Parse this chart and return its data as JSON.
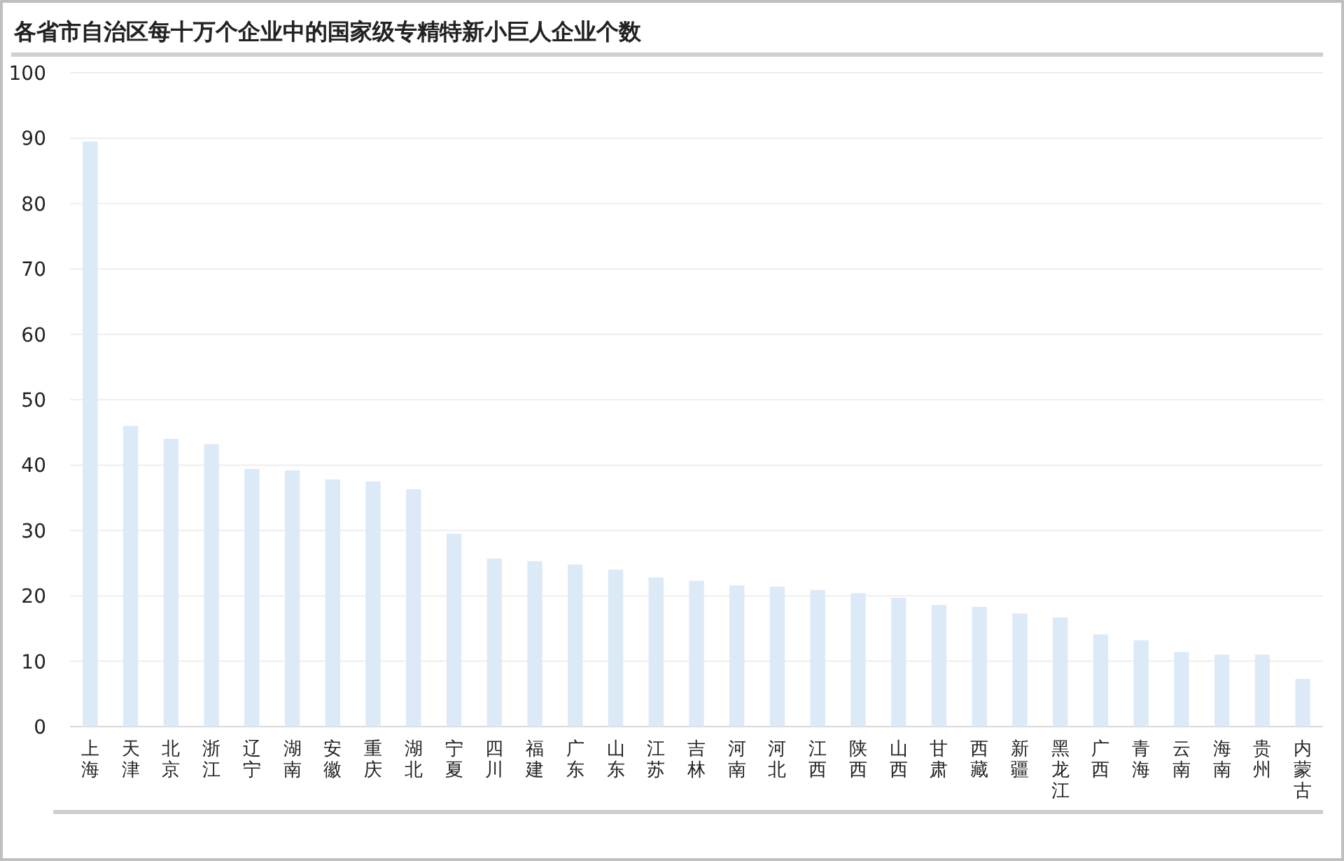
{
  "chart_data": {
    "type": "bar",
    "title": "各省市自治区每十万个企业中的国家级专精特新小巨人企业个数",
    "categories": [
      "上海",
      "天津",
      "北京",
      "浙江",
      "辽宁",
      "湖南",
      "安徽",
      "重庆",
      "湖北",
      "宁夏",
      "四川",
      "福建",
      "广东",
      "山东",
      "江苏",
      "吉林",
      "河南",
      "河北",
      "江西",
      "陕西",
      "山西",
      "甘肃",
      "西藏",
      "新疆",
      "黑龙江",
      "广西",
      "青海",
      "云南",
      "海南",
      "贵州",
      "内蒙古"
    ],
    "values": [
      89.5,
      46,
      44,
      43.2,
      39.4,
      39.2,
      37.8,
      37.5,
      36.3,
      29.5,
      25.7,
      25.3,
      24.8,
      24,
      22.8,
      22.3,
      21.6,
      21.4,
      20.9,
      20.4,
      19.7,
      18.6,
      18.3,
      17.3,
      16.7,
      14.1,
      13.2,
      11.4,
      11,
      11,
      7.3
    ],
    "color": "#dce9f6",
    "ylim": [
      0,
      100
    ],
    "yticks": [
      0,
      10,
      20,
      30,
      40,
      50,
      60,
      70,
      80,
      90,
      100
    ],
    "grid": "y"
  }
}
